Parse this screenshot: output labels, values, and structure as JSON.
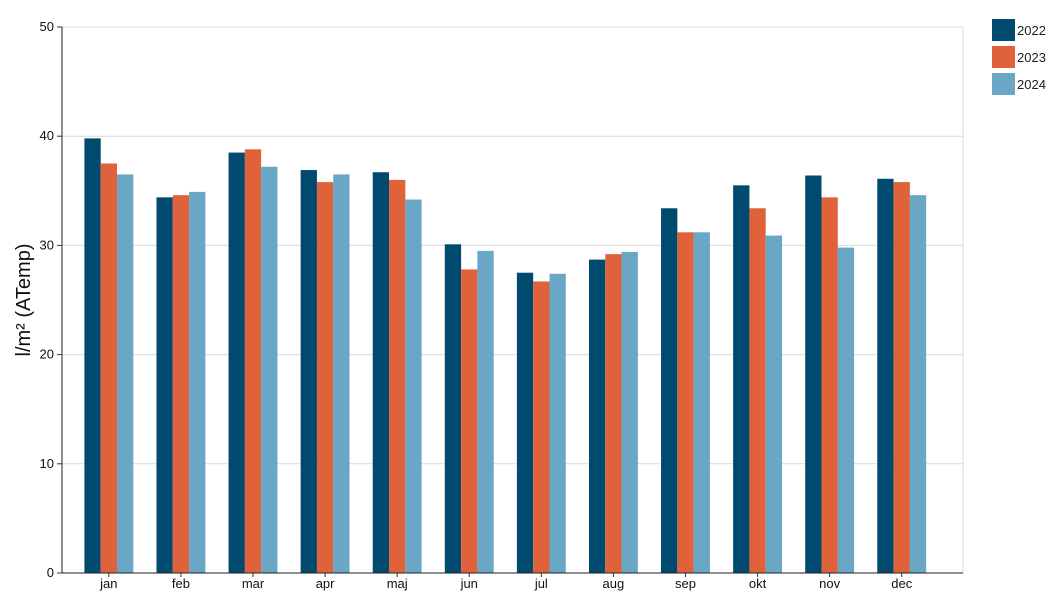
{
  "chart_data": {
    "type": "bar",
    "ylabel": "l/m² (ATemp)",
    "ylim": [
      0,
      50
    ],
    "yticks": [
      0,
      10,
      20,
      30,
      40,
      50
    ],
    "grid": true,
    "legend_position": "top-right",
    "categories": [
      "jan",
      "feb",
      "mar",
      "apr",
      "maj",
      "jun",
      "jul",
      "aug",
      "sep",
      "okt",
      "nov",
      "dec"
    ],
    "series": [
      {
        "name": "2022",
        "color": "#004a70",
        "values": [
          39.8,
          34.4,
          38.5,
          36.9,
          36.7,
          30.1,
          27.5,
          28.7,
          33.4,
          35.5,
          36.4,
          36.1
        ]
      },
      {
        "name": "2023",
        "color": "#e0623b",
        "values": [
          37.5,
          34.6,
          38.8,
          35.8,
          36.0,
          27.8,
          26.7,
          29.2,
          31.2,
          33.4,
          34.4,
          35.8
        ]
      },
      {
        "name": "2024",
        "color": "#6aa7c6",
        "values": [
          36.5,
          34.9,
          37.2,
          36.5,
          34.2,
          29.5,
          27.4,
          29.4,
          31.2,
          30.9,
          29.8,
          34.6
        ]
      }
    ]
  }
}
